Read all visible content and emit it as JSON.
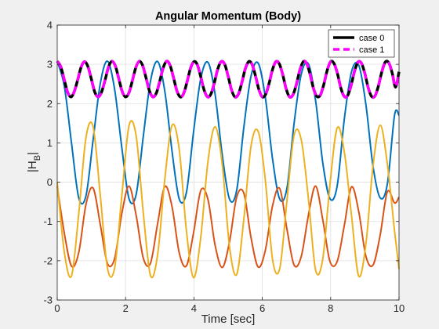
{
  "chart_data": {
    "type": "line",
    "title": "Angular Momentum (Body)",
    "xlabel": "Time [sec]",
    "ylabel_main": "|H",
    "ylabel_sub": "B",
    "ylabel_end": "|",
    "xlim": [
      0,
      10
    ],
    "ylim": [
      -3,
      4
    ],
    "xticks": [
      0,
      2,
      4,
      6,
      8,
      10
    ],
    "yticks": [
      -3,
      -2,
      -1,
      0,
      1,
      2,
      3,
      4
    ],
    "grid": true,
    "legend_location": "top-right",
    "legend": [
      {
        "label": "case 0",
        "color": "#000000",
        "style": "solid"
      },
      {
        "label": "case 1",
        "color": "#ff00ff",
        "style": "dashed"
      }
    ],
    "series": [
      {
        "color": "#0072bd",
        "x": [
          0,
          0.21,
          0.42,
          0.63,
          0.84,
          1.05,
          1.26,
          1.47,
          1.68,
          1.89,
          2.1,
          2.31,
          2.52,
          2.73,
          2.94,
          3.15,
          3.36,
          3.57,
          3.78,
          3.99,
          4.2,
          4.41,
          4.62,
          4.83,
          5.04,
          5.25,
          5.46,
          5.67,
          5.88,
          6.09,
          6.3,
          6.51,
          6.72,
          6.93,
          7.14,
          7.35,
          7.56,
          7.77,
          7.98,
          8.19,
          8.4,
          8.61,
          8.82,
          9.03,
          9.24,
          9.45,
          9.66,
          9.87,
          10.0
        ],
        "y": [
          3.08,
          2.43,
          0.98,
          -0.4,
          -0.35,
          1.08,
          2.51,
          3.08,
          2.36,
          0.88,
          -0.42,
          -0.31,
          1.18,
          2.58,
          3.07,
          2.3,
          0.78,
          -0.43,
          -0.26,
          1.29,
          2.64,
          3.05,
          2.23,
          0.68,
          -0.43,
          -0.21,
          1.4,
          2.7,
          3.03,
          2.15,
          0.59,
          -0.43,
          -0.16,
          1.5,
          2.75,
          3.01,
          2.07,
          0.49,
          -0.42,
          -0.1,
          1.61,
          2.81,
          2.98,
          1.98,
          0.4,
          -0.4,
          -0.04,
          1.71,
          1.7
        ]
      },
      {
        "color": "#d95319",
        "x": [
          0,
          0.21,
          0.42,
          0.63,
          0.84,
          1.05,
          1.26,
          1.47,
          1.68,
          1.89,
          2.1,
          2.31,
          2.52,
          2.73,
          2.94,
          3.15,
          3.36,
          3.57,
          3.78,
          3.99,
          4.2,
          4.41,
          4.62,
          4.83,
          5.04,
          5.25,
          5.46,
          5.67,
          5.88,
          6.09,
          6.3,
          6.51,
          6.72,
          6.93,
          7.14,
          7.35,
          7.56,
          7.77,
          7.98,
          8.19,
          8.4,
          8.61,
          8.82,
          9.03,
          9.24,
          9.45,
          9.66,
          9.87,
          10.0
        ],
        "y": [
          -0.1,
          -1.31,
          -2.14,
          -1.79,
          -0.57,
          -0.15,
          -1.08,
          -2.07,
          -1.94,
          -0.8,
          -0.1,
          -0.85,
          -1.94,
          -2.06,
          -1.04,
          -0.11,
          -0.63,
          -1.8,
          -2.13,
          -1.28,
          -0.21,
          -0.44,
          -1.61,
          -2.17,
          -1.52,
          -0.38,
          -0.28,
          -1.41,
          -2.16,
          -1.73,
          -0.6,
          -0.16,
          -1.19,
          -2.11,
          -1.89,
          -0.84,
          -0.1,
          -0.96,
          -2.02,
          -2.02,
          -1.1,
          -0.12,
          -0.74,
          -1.88,
          -2.11,
          -1.34,
          -0.24,
          -0.53,
          -0.38
        ]
      },
      {
        "color": "#edb120",
        "x": [
          0,
          0.21,
          0.42,
          0.63,
          0.84,
          1.05,
          1.26,
          1.47,
          1.68,
          1.89,
          2.1,
          2.31,
          2.52,
          2.73,
          2.94,
          3.15,
          3.36,
          3.57,
          3.78,
          3.99,
          4.2,
          4.41,
          4.62,
          4.83,
          5.04,
          5.25,
          5.46,
          5.67,
          5.88,
          6.09,
          6.3,
          6.51,
          6.72,
          6.93,
          7.14,
          7.35,
          7.56,
          7.77,
          7.98,
          8.19,
          8.4,
          8.61,
          8.82,
          9.03,
          9.24,
          9.45,
          9.66,
          9.87,
          10.0
        ],
        "y": [
          0.0,
          -1.8,
          -2.38,
          -0.8,
          1.13,
          1.41,
          -0.34,
          -2.19,
          -2.18,
          -0.34,
          1.44,
          1.17,
          -0.8,
          -2.38,
          -1.83,
          0.1,
          1.45,
          0.83,
          -1.24,
          -2.43,
          -1.4,
          0.53,
          1.41,
          0.44,
          -1.64,
          -2.35,
          -0.94,
          0.92,
          1.29,
          0.04,
          -1.97,
          -2.2,
          -0.48,
          1.2,
          1.08,
          -0.43,
          -2.24,
          -1.95,
          -0.05,
          1.38,
          0.77,
          -0.85,
          -2.39,
          -1.58,
          0.42,
          1.45,
          0.45,
          -1.25,
          -2.21
        ]
      },
      {
        "color": "#000000",
        "width": 3.5,
        "x": [
          0,
          0.1,
          0.2,
          0.3,
          0.4,
          0.5,
          0.6,
          0.7,
          0.8,
          0.9,
          1.0,
          1.1,
          1.2,
          1.3,
          1.4,
          1.5,
          1.6,
          1.7,
          1.8,
          1.9,
          2.0,
          2.1,
          2.2,
          2.3,
          2.4,
          2.5,
          2.6,
          2.7,
          2.8,
          2.9,
          3.0,
          3.1,
          3.2,
          3.3,
          3.4,
          3.5,
          3.6,
          3.7,
          3.8,
          3.9,
          4.0,
          4.1,
          4.2,
          4.3,
          4.4,
          4.5,
          4.6,
          4.7,
          4.8,
          4.9,
          5.0,
          5.1,
          5.2,
          5.3,
          5.4,
          5.5,
          5.6,
          5.7,
          5.8,
          5.9,
          6.0,
          6.1,
          6.2,
          6.3,
          6.4,
          6.5,
          6.6,
          6.7,
          6.8,
          6.9,
          7.0,
          7.1,
          7.2,
          7.3,
          7.4,
          7.5,
          7.6,
          7.7,
          7.8,
          7.9,
          8.0,
          8.1,
          8.2,
          8.3,
          8.4,
          8.5,
          8.6,
          8.7,
          8.8,
          8.9,
          9.0,
          9.1,
          9.2,
          9.3,
          9.4,
          9.5,
          9.6,
          9.7,
          9.8,
          9.9,
          10.0
        ],
        "y": [
          3.08,
          2.95,
          2.63,
          2.3,
          2.17,
          2.31,
          2.61,
          2.93,
          3.07,
          2.94,
          2.62,
          2.29,
          2.17,
          2.3,
          2.6,
          2.93,
          3.08,
          2.96,
          2.64,
          2.31,
          2.17,
          2.28,
          2.59,
          2.92,
          3.08,
          2.97,
          2.65,
          2.32,
          2.17,
          2.27,
          2.57,
          2.91,
          3.08,
          2.98,
          2.67,
          2.33,
          2.17,
          2.26,
          2.56,
          2.9,
          3.07,
          2.99,
          2.68,
          2.34,
          2.17,
          2.25,
          2.54,
          2.89,
          3.07,
          3.0,
          2.7,
          2.35,
          2.17,
          2.24,
          2.53,
          2.88,
          3.07,
          3.0,
          2.71,
          2.36,
          2.17,
          2.24,
          2.52,
          2.87,
          3.07,
          3.01,
          2.73,
          2.37,
          2.17,
          2.23,
          2.5,
          2.86,
          3.07,
          3.02,
          2.74,
          2.38,
          2.18,
          2.22,
          2.49,
          2.85,
          3.07,
          3.02,
          2.76,
          2.39,
          2.18,
          2.21,
          2.47,
          2.83,
          3.06,
          3.03,
          2.77,
          2.4,
          2.18,
          2.2,
          2.46,
          2.82,
          3.06,
          3.04,
          2.78,
          2.42,
          2.81
        ]
      },
      {
        "color": "#ff00ff",
        "width": 3.5,
        "dash": "11,7",
        "x": [
          0,
          0.1,
          0.2,
          0.3,
          0.4,
          0.5,
          0.6,
          0.7,
          0.8,
          0.9,
          1.0,
          1.1,
          1.2,
          1.3,
          1.4,
          1.5,
          1.6,
          1.7,
          1.8,
          1.9,
          2.0,
          2.1,
          2.2,
          2.3,
          2.4,
          2.5,
          2.6,
          2.7,
          2.8,
          2.9,
          3.0,
          3.1,
          3.2,
          3.3,
          3.4,
          3.5,
          3.6,
          3.7,
          3.8,
          3.9,
          4.0,
          4.1,
          4.2,
          4.3,
          4.4,
          4.5,
          4.6,
          4.7,
          4.8,
          4.9,
          5.0,
          5.1,
          5.2,
          5.3,
          5.4,
          5.5,
          5.6,
          5.7,
          5.8,
          5.9,
          6.0,
          6.1,
          6.2,
          6.3,
          6.4,
          6.5,
          6.6,
          6.7,
          6.8,
          6.9,
          7.0,
          7.1,
          7.2,
          7.3,
          7.4,
          7.5,
          7.6,
          7.7,
          7.8,
          7.9,
          8.0,
          8.1,
          8.2,
          8.3,
          8.4,
          8.5,
          8.6,
          8.7,
          8.8,
          8.9,
          9.0,
          9.1,
          9.2,
          9.3,
          9.4,
          9.5,
          9.6,
          9.7,
          9.8,
          9.9,
          10.0
        ],
        "y": [
          3.08,
          2.95,
          2.63,
          2.3,
          2.17,
          2.31,
          2.61,
          2.93,
          3.07,
          2.94,
          2.62,
          2.29,
          2.17,
          2.3,
          2.6,
          2.93,
          3.08,
          2.96,
          2.64,
          2.31,
          2.17,
          2.28,
          2.59,
          2.92,
          3.08,
          2.97,
          2.65,
          2.32,
          2.17,
          2.27,
          2.57,
          2.91,
          3.08,
          2.98,
          2.67,
          2.33,
          2.17,
          2.26,
          2.56,
          2.9,
          3.07,
          2.99,
          2.68,
          2.34,
          2.17,
          2.25,
          2.54,
          2.89,
          3.07,
          3.0,
          2.7,
          2.35,
          2.17,
          2.24,
          2.53,
          2.88,
          3.07,
          3.0,
          2.71,
          2.36,
          2.17,
          2.24,
          2.52,
          2.87,
          3.07,
          3.01,
          2.73,
          2.37,
          2.17,
          2.23,
          2.5,
          2.86,
          3.07,
          3.02,
          2.74,
          2.38,
          2.18,
          2.22,
          2.49,
          2.85,
          3.07,
          3.02,
          2.76,
          2.39,
          2.18,
          2.21,
          2.47,
          2.83,
          3.06,
          3.03,
          2.77,
          2.4,
          2.18,
          2.2,
          2.46,
          2.82,
          3.06,
          3.04,
          2.78,
          2.42,
          2.81
        ]
      }
    ]
  }
}
